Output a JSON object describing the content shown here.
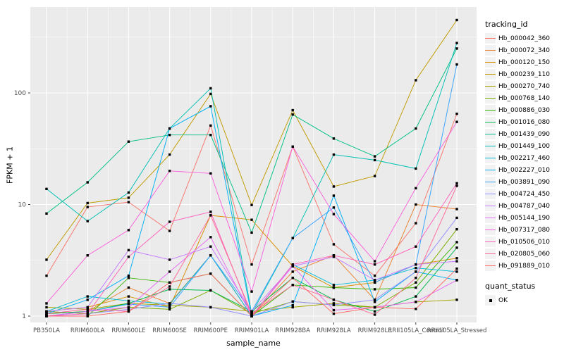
{
  "figure": {
    "xlabel": "sample_name",
    "ylabel": "FPKM + 1",
    "legend_title": "tracking_id",
    "legend2_title": "quant_status"
  },
  "colors": {
    "panel_bg": "#EBEBEB",
    "grid_major": "#FFFFFF",
    "grid_minor": "#FFFFFF",
    "tick_text": "#4D4D4D",
    "axis_title_text": "#000000",
    "legend_key_bg": "#F2F2F2",
    "point": "#000000"
  },
  "chart_data": {
    "type": "line",
    "title": "",
    "xlabel": "sample_name",
    "ylabel": "FPKM + 1",
    "yscale": "log10",
    "yticks": [
      1,
      10,
      100
    ],
    "ylim": [
      0.9,
      590
    ],
    "grid": true,
    "legend_position": "right",
    "point_marker": "black-square",
    "categories": [
      "PB350LA",
      "RRIM600LA",
      "RRIM600LE",
      "RRIM600SE",
      "RRIM600PE",
      "RRIM901LA",
      "RRIM928BA",
      "RRIM928LA",
      "RRIM928LE",
      "RRII105LA_Control",
      "RRII105LA_Stressed"
    ],
    "series": [
      {
        "name": "Hb_000042_360",
        "color": "#F8766D",
        "values": [
          2.3,
          9.5,
          10.5,
          5.8,
          51,
          2.9,
          33,
          4.4,
          2.3,
          6.8,
          65
        ]
      },
      {
        "name": "Hb_000072_340",
        "color": "#EA8331",
        "values": [
          1.05,
          1.1,
          1.8,
          1.3,
          3.5,
          1.0,
          2.5,
          3.5,
          1.4,
          10,
          9.1
        ]
      },
      {
        "name": "Hb_000120_150",
        "color": "#D89000",
        "values": [
          1.1,
          1.2,
          1.5,
          1.2,
          8.0,
          7.3,
          2.8,
          1.8,
          2.0,
          2.9,
          3.3
        ]
      },
      {
        "name": "Hb_000239_110",
        "color": "#C09B00",
        "values": [
          3.2,
          10.3,
          11.5,
          28,
          98,
          9.9,
          70,
          14.5,
          18,
          130,
          450
        ]
      },
      {
        "name": "Hb_000270_740",
        "color": "#A3A500",
        "values": [
          1.2,
          1.15,
          1.3,
          1.25,
          1.2,
          1.1,
          1.2,
          1.3,
          1.2,
          1.34,
          1.4
        ]
      },
      {
        "name": "Hb_000768_140",
        "color": "#7CAE00",
        "values": [
          1.1,
          1.05,
          1.2,
          1.15,
          1.7,
          1.05,
          1.35,
          1.26,
          1.2,
          2.0,
          6.0
        ]
      },
      {
        "name": "Hb_000886_030",
        "color": "#39B600",
        "values": [
          1.0,
          1.0,
          2.2,
          2.0,
          2.4,
          1.0,
          1.9,
          1.8,
          1.74,
          1.8,
          4.6
        ]
      },
      {
        "name": "Hb_001016_080",
        "color": "#00BB4E",
        "values": [
          1.05,
          1.1,
          1.3,
          1.74,
          1.7,
          1.1,
          2.2,
          1.4,
          1.1,
          1.5,
          4.1
        ]
      },
      {
        "name": "Hb_001439_090",
        "color": "#00C087",
        "values": [
          8.3,
          15.8,
          36.6,
          42,
          42,
          5.6,
          64,
          39,
          27,
          48,
          250
        ]
      },
      {
        "name": "Hb_001449_100",
        "color": "#00C0B4",
        "values": [
          13.8,
          7.1,
          12.8,
          48,
          110,
          1.05,
          5.0,
          28,
          25,
          21,
          280
        ]
      },
      {
        "name": "Hb_002217_460",
        "color": "#00BCD8",
        "values": [
          1.1,
          1.5,
          1.37,
          1.28,
          3.5,
          1.0,
          2.9,
          1.9,
          2.1,
          2.7,
          2.5
        ]
      },
      {
        "name": "Hb_002227_010",
        "color": "#00B0F6",
        "values": [
          1.05,
          1.4,
          2.3,
          48,
          76,
          1.0,
          1.25,
          12,
          1.34,
          2.5,
          2.1
        ]
      },
      {
        "name": "Hb_003891_090",
        "color": "#35A2FF",
        "values": [
          1.0,
          1.1,
          1.28,
          1.2,
          3.5,
          1.1,
          5.0,
          9.4,
          2.0,
          2.9,
          180
        ]
      },
      {
        "name": "Hb_004724_450",
        "color": "#9590FF",
        "values": [
          1.0,
          1.05,
          1.15,
          1.3,
          1.2,
          1.0,
          1.35,
          1.26,
          1.4,
          2.5,
          7.6
        ]
      },
      {
        "name": "Hb_004787_040",
        "color": "#C77CFF",
        "values": [
          1.1,
          1.2,
          3.9,
          3.2,
          4.2,
          1.1,
          2.8,
          3.4,
          2.1,
          2.9,
          3.1
        ]
      },
      {
        "name": "Hb_005144_190",
        "color": "#E76BF3",
        "values": [
          1.0,
          1.1,
          1.2,
          2.5,
          5.1,
          1.0,
          2.8,
          1.13,
          1.2,
          1.34,
          2.1
        ]
      },
      {
        "name": "Hb_007317_080",
        "color": "#FA62DB",
        "values": [
          1.3,
          3.5,
          5.9,
          20,
          19,
          1.66,
          33,
          8.2,
          3.1,
          14,
          55
        ]
      },
      {
        "name": "Hb_010506_010",
        "color": "#FF62BC",
        "values": [
          1.0,
          1.05,
          3.4,
          7.0,
          8.6,
          1.0,
          2.9,
          3.5,
          2.9,
          4.2,
          15.5
        ]
      },
      {
        "name": "Hb_020805_060",
        "color": "#FF6A98",
        "values": [
          1.05,
          1.15,
          1.1,
          1.84,
          8.0,
          1.05,
          1.9,
          1.4,
          1.03,
          2.2,
          14.7
        ]
      },
      {
        "name": "Hb_091889_010",
        "color": "#FF6C67",
        "values": [
          1.0,
          1.0,
          1.1,
          2.0,
          2.4,
          1.0,
          2.2,
          1.05,
          1.2,
          1.16,
          2.66
        ]
      }
    ],
    "quant_status": {
      "title": "quant_status",
      "items": [
        "OK"
      ]
    }
  }
}
